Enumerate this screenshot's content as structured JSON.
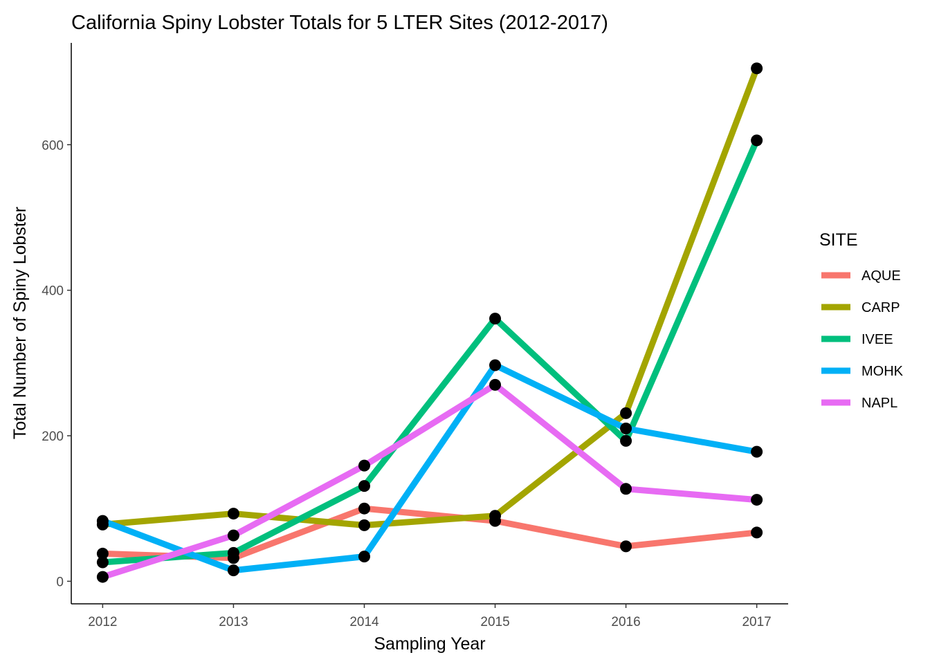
{
  "chart_data": {
    "type": "line",
    "title": "California Spiny Lobster Totals for 5 LTER Sites (2012-2017)",
    "xlabel": "Sampling Year",
    "ylabel": "Total Number of Spiny Lobster",
    "x": [
      2012,
      2013,
      2014,
      2015,
      2016,
      2017
    ],
    "x_tick_labels": [
      "2012",
      "2013",
      "2014",
      "2015",
      "2016",
      "2017"
    ],
    "y_ticks": [
      0,
      200,
      400,
      600
    ],
    "y_tick_labels": [
      "0",
      "200",
      "400",
      "600"
    ],
    "xlim": [
      2011.76,
      2017.24
    ],
    "ylim": [
      -31,
      740
    ],
    "grid": false,
    "legend_position": "right",
    "legend_title": "SITE",
    "point_color": "#000000",
    "series": [
      {
        "name": "AQUE",
        "color": "#F8766D",
        "values": [
          38,
          32,
          100,
          83,
          48,
          67
        ]
      },
      {
        "name": "CARP",
        "color": "#A3A500",
        "values": [
          78,
          93,
          77,
          90,
          231,
          705
        ]
      },
      {
        "name": "IVEE",
        "color": "#00BF7D",
        "values": [
          26,
          39,
          131,
          361,
          193,
          606
        ]
      },
      {
        "name": "MOHK",
        "color": "#00B0F6",
        "values": [
          83,
          15,
          34,
          297,
          210,
          178
        ]
      },
      {
        "name": "NAPL",
        "color": "#E76BF3",
        "values": [
          6,
          63,
          159,
          270,
          127,
          112
        ]
      }
    ]
  }
}
